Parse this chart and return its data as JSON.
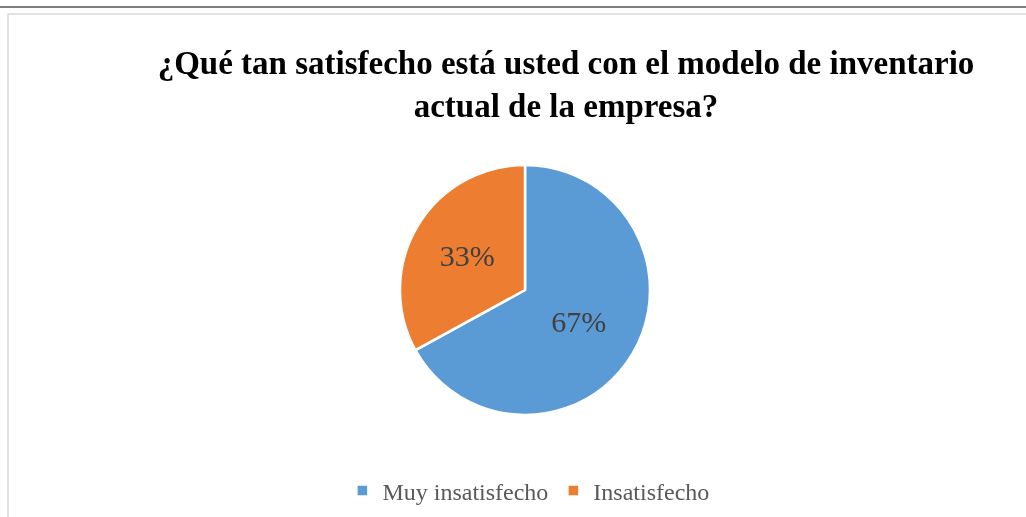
{
  "chart_data": {
    "type": "pie",
    "title": "¿Qué tan satisfecho está usted con el modelo de inventario actual de la empresa?",
    "categories": [
      "Muy insatisfecho",
      "Insatisfecho"
    ],
    "values": [
      67,
      33
    ],
    "colors": [
      "#5b9bd5",
      "#ed7d31"
    ],
    "value_labels": [
      "67%",
      "33%"
    ],
    "legend": "bottom"
  }
}
